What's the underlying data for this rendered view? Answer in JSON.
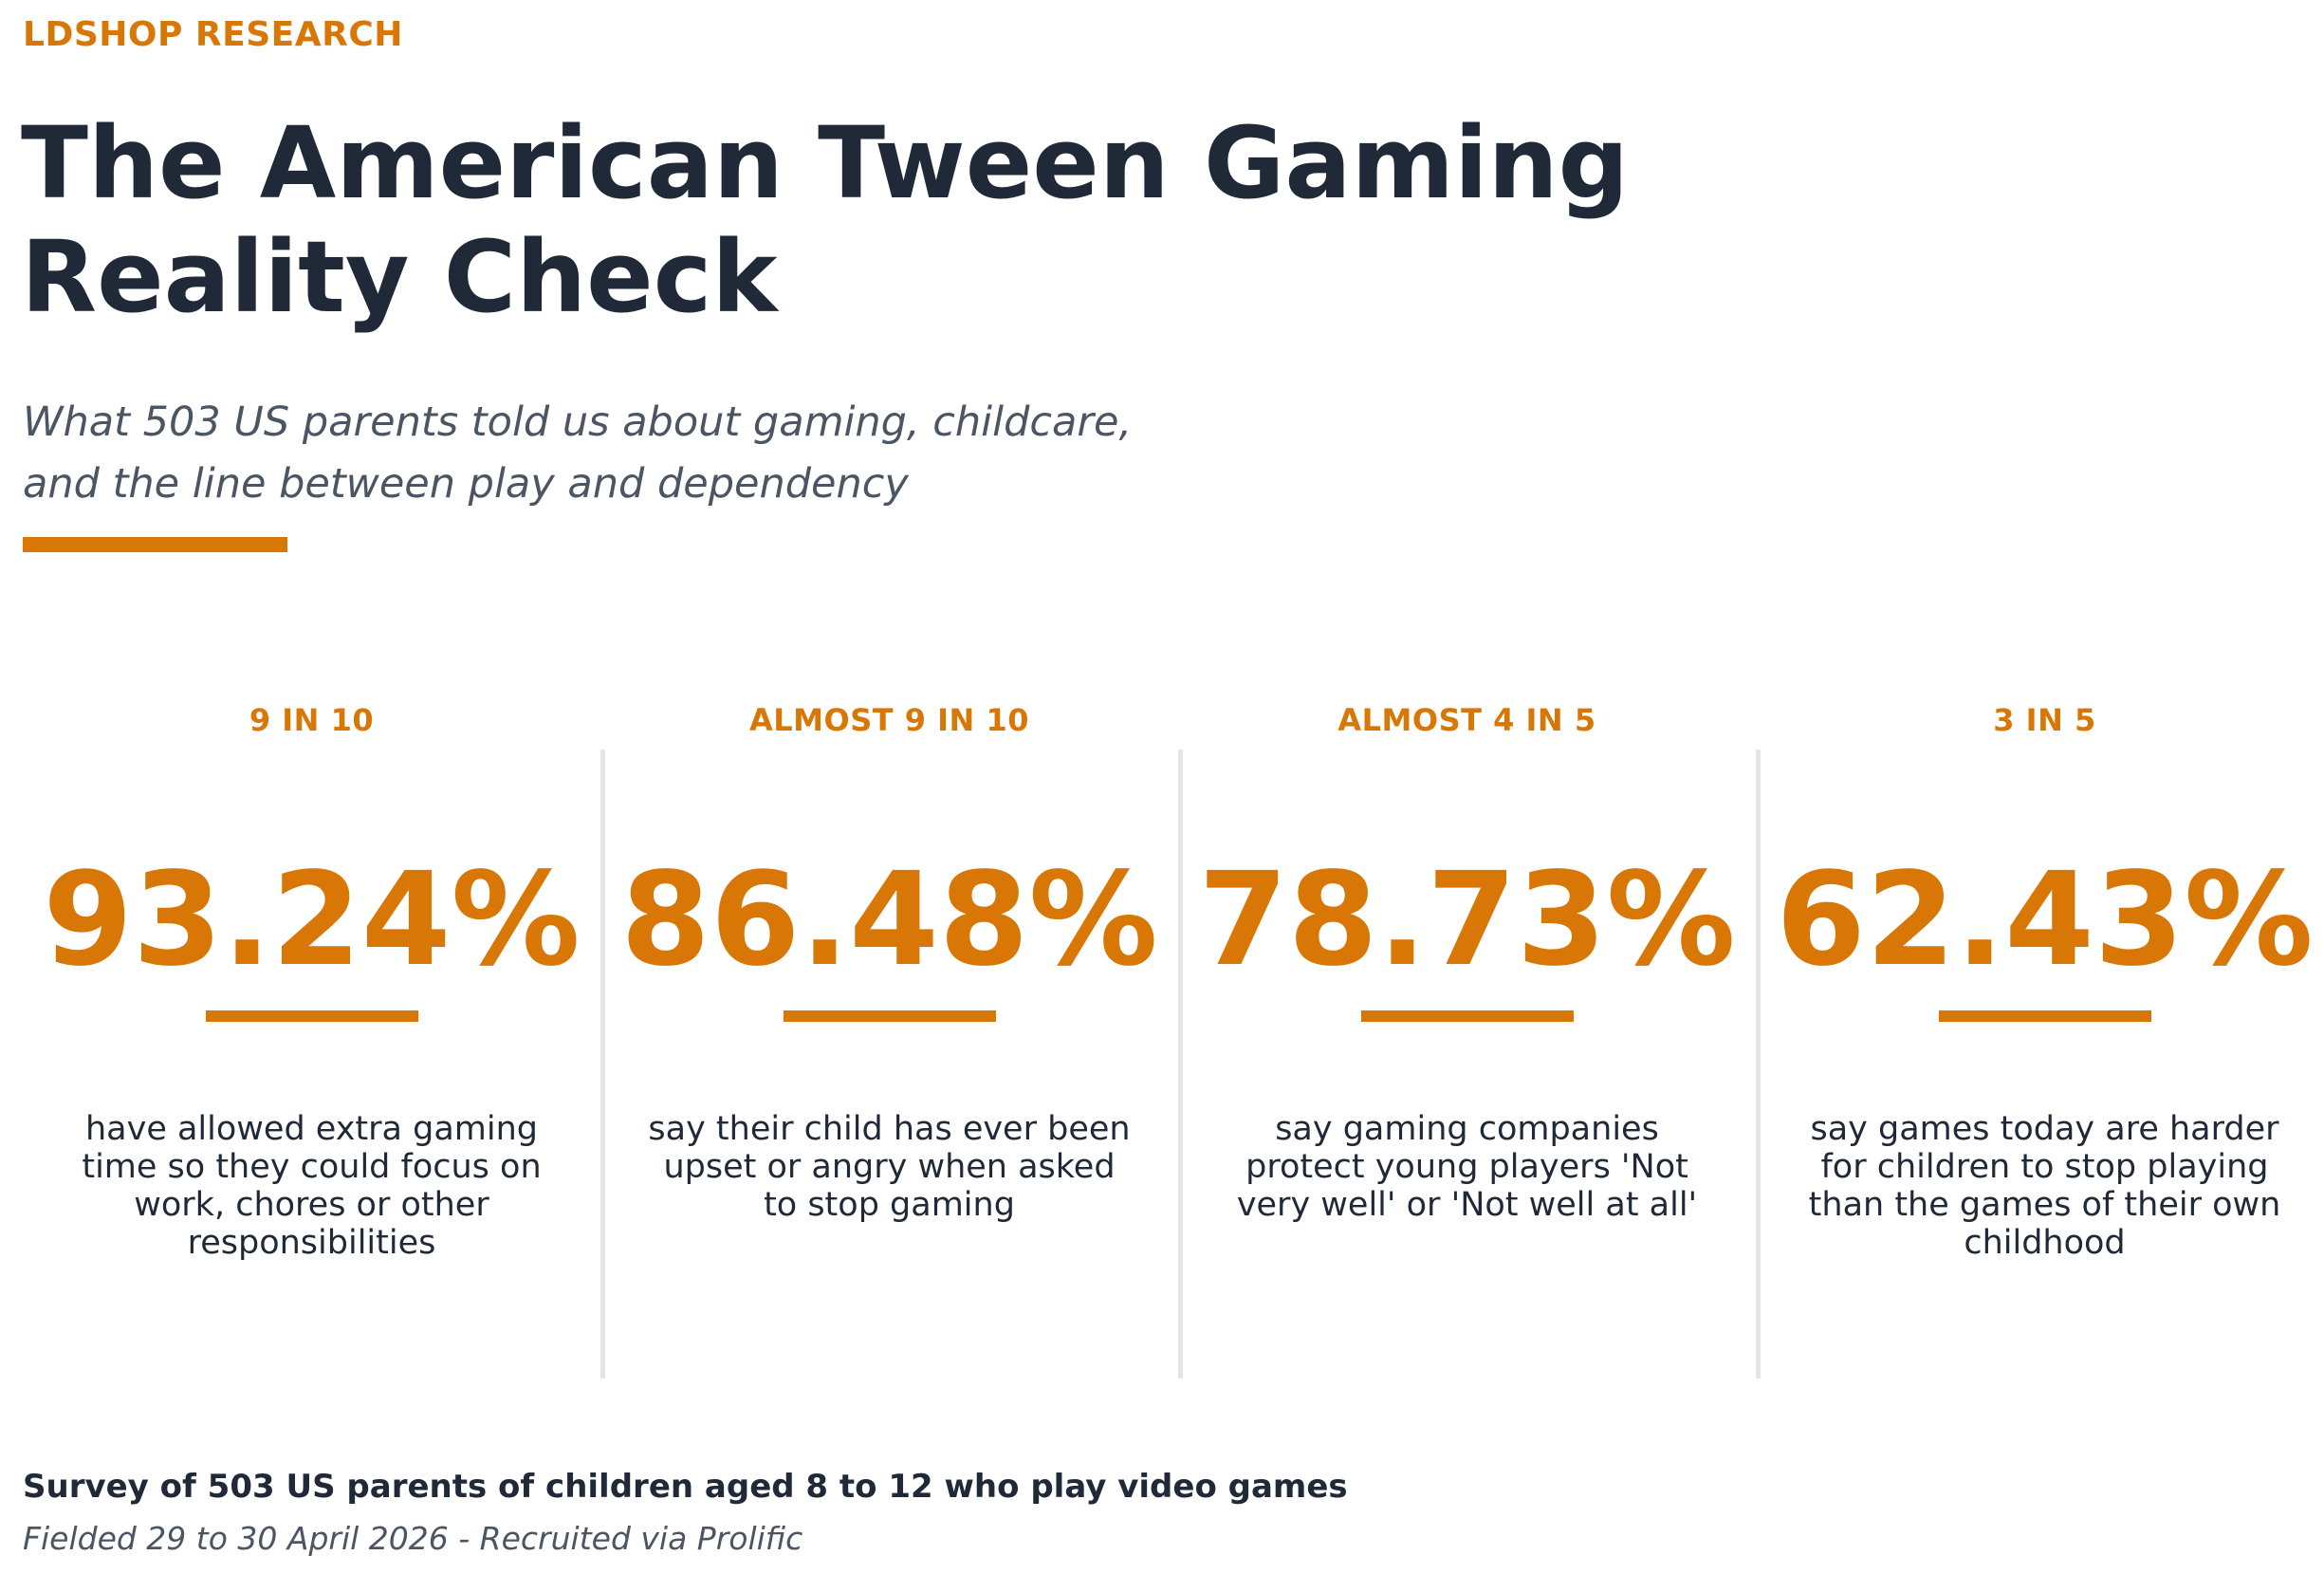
{
  "header": {
    "eyebrow": "LDSHOP RESEARCH",
    "title": "The American Tween Gaming\nReality Check",
    "subtitle": "What 503 US parents told us about gaming, childcare,\nand the line between play and dependency"
  },
  "colors": {
    "accent": "#d97706",
    "heading": "#1f2937",
    "muted": "#4b5563",
    "divider": "#e5e5e5"
  },
  "chart_data": {
    "type": "table",
    "unit": "%",
    "stats": [
      {
        "label": "9 IN 10",
        "value": 93.24,
        "display": "93.24%",
        "description": "have allowed extra gaming time so they could focus on work, chores or other responsibilities"
      },
      {
        "label": "ALMOST 9 IN 10",
        "value": 86.48,
        "display": "86.48%",
        "description": "say their child has ever been upset or angry when asked to stop gaming"
      },
      {
        "label": "ALMOST 4 IN 5",
        "value": 78.73,
        "display": "78.73%",
        "description": "say gaming companies protect young players 'Not very well' or 'Not well at all'"
      },
      {
        "label": "3 IN 5",
        "value": 62.43,
        "display": "62.43%",
        "description": "say games today are harder for children to stop playing than the games of their own childhood"
      }
    ]
  },
  "footer": {
    "survey": "Survey of 503 US parents of children aged 8 to 12 who play video games",
    "fielded": "Fielded 29 to 30 April 2026  -  Recruited via Prolific"
  }
}
